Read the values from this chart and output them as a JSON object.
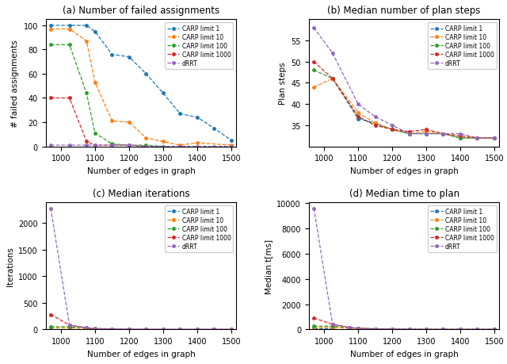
{
  "x": [
    970,
    1025,
    1075,
    1100,
    1150,
    1200,
    1250,
    1300,
    1350,
    1400,
    1450,
    1500
  ],
  "failed_assignments": {
    "CARP limit 1": [
      100,
      100,
      100,
      95,
      76,
      74,
      60,
      44,
      27,
      24,
      15,
      5
    ],
    "CARP limit 10": [
      97,
      97,
      87,
      53,
      21,
      20,
      7,
      4,
      1,
      3,
      null,
      1
    ],
    "CARP limit 100": [
      84,
      84,
      44,
      11,
      2,
      1,
      1,
      0,
      null,
      null,
      null,
      null
    ],
    "CARP limit 1000": [
      40,
      40,
      4,
      1,
      1,
      1,
      0,
      null,
      null,
      null,
      null,
      null
    ],
    "dRRT": [
      1,
      1,
      1,
      1,
      1,
      1,
      0,
      0,
      0,
      0,
      0,
      0
    ]
  },
  "plan_steps": {
    "CARP limit 1": [
      null,
      46,
      null,
      36.5,
      35.5,
      34,
      33,
      33,
      33,
      32,
      32,
      32
    ],
    "CARP limit 10": [
      44,
      46,
      null,
      38,
      35.5,
      34,
      33,
      33.5,
      33,
      32,
      32,
      32
    ],
    "CARP limit 100": [
      48,
      46,
      null,
      37,
      35,
      34,
      33,
      33,
      33,
      32,
      32,
      32
    ],
    "CARP limit 1000": [
      50,
      46,
      null,
      37,
      35,
      34,
      33.5,
      34,
      33,
      32.5,
      32,
      32
    ],
    "dRRT": [
      58,
      52,
      null,
      40,
      37,
      35,
      33,
      33,
      33,
      33,
      32,
      32
    ]
  },
  "iterations": {
    "CARP limit 1": [
      1,
      1,
      null,
      null,
      null,
      null,
      null,
      null,
      null,
      null,
      null,
      null
    ],
    "CARP limit 10": [
      30,
      30,
      null,
      5,
      null,
      null,
      null,
      null,
      null,
      null,
      null,
      null
    ],
    "CARP limit 100": [
      50,
      50,
      null,
      10,
      null,
      null,
      null,
      null,
      null,
      null,
      null,
      null
    ],
    "CARP limit 1000": [
      280,
      80,
      30,
      10,
      5,
      2,
      1,
      0,
      0,
      0,
      0,
      0
    ],
    "dRRT": [
      2280,
      80,
      30,
      20,
      10,
      5,
      2,
      2,
      2,
      2,
      2,
      2
    ]
  },
  "median_time": {
    "CARP limit 1": [
      100,
      100,
      null,
      null,
      null,
      null,
      null,
      null,
      null,
      null,
      null,
      null
    ],
    "CARP limit 10": [
      150,
      150,
      null,
      50,
      null,
      null,
      null,
      null,
      null,
      null,
      null,
      null
    ],
    "CARP limit 100": [
      250,
      250,
      null,
      100,
      50,
      20,
      10,
      5,
      2,
      2,
      2,
      2
    ],
    "CARP limit 1000": [
      900,
      400,
      150,
      80,
      40,
      20,
      10,
      5,
      2,
      2,
      2,
      2
    ],
    "dRRT": [
      9600,
      400,
      150,
      80,
      40,
      20,
      10,
      5,
      5,
      5,
      5,
      5
    ]
  },
  "colors": {
    "CARP limit 1": "#1f77b4",
    "CARP limit 10": "#ff7f0e",
    "CARP limit 100": "#2ca02c",
    "CARP limit 1000": "#d62728",
    "dRRT": "#9467bd"
  },
  "titles": [
    "(a) Number of failed assignments",
    "(b) Median number of plan steps",
    "(c) Median iterations",
    "(d) Median time to plan"
  ],
  "xlabels": [
    "Number of edges in graph",
    "Number of edges in graph",
    "Number of edges in graph",
    "Number of edges in graph"
  ],
  "ylabels": [
    "# failed assignments",
    "Plan steps",
    "Iterations",
    "Median t[ms]"
  ],
  "xticks": [
    1000,
    1100,
    1200,
    1300,
    1400,
    1500
  ]
}
